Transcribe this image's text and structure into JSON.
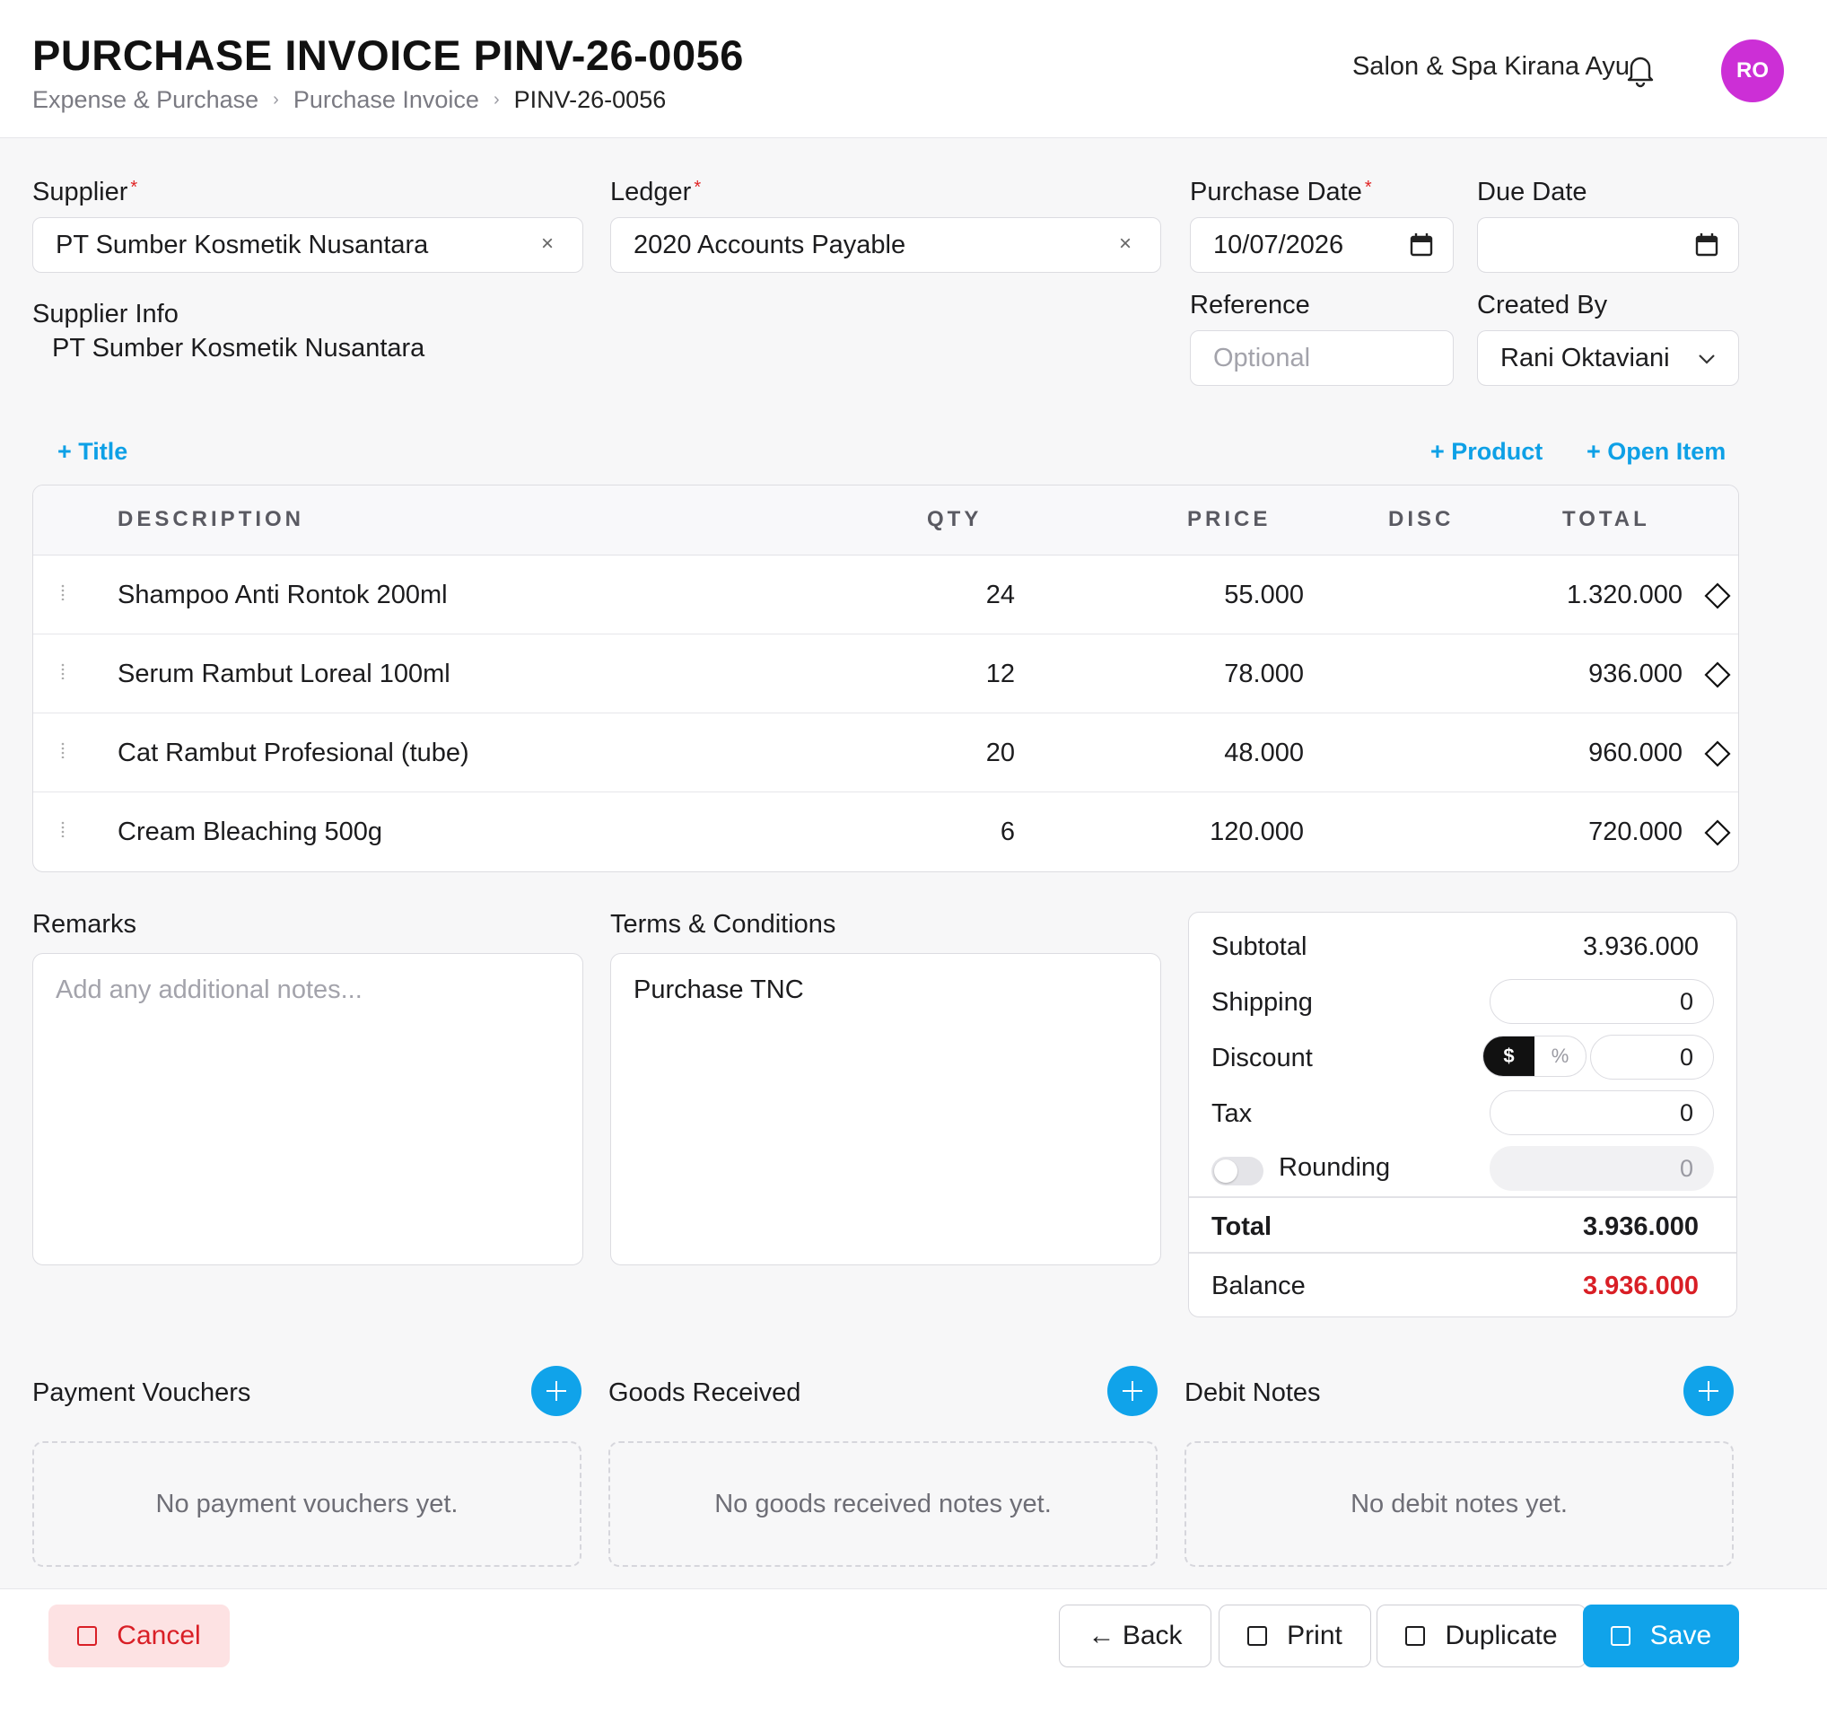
{
  "header": {
    "title": "PURCHASE INVOICE PINV-26-0056",
    "breadcrumb": [
      "Expense & Purchase",
      "Purchase Invoice",
      "PINV-26-0056"
    ],
    "company": "Salon & Spa Kirana Ayu",
    "avatar_initials": "RO",
    "avatar_color": "#cc2fd6",
    "bell_icon": "bell-icon"
  },
  "form": {
    "supplier_label": "Supplier",
    "supplier_value": "PT Sumber Kosmetik Nusantara",
    "ledger_label": "Ledger",
    "ledger_value": "2020 Accounts Payable",
    "purchase_date_label": "Purchase Date",
    "purchase_date_value": "10/07/2026",
    "due_date_label": "Due Date",
    "due_date_value": "",
    "supplier_info_label": "Supplier Info",
    "supplier_info_value": "PT Sumber Kosmetik Nusantara",
    "reference_label": "Reference",
    "reference_placeholder": "Optional",
    "created_by_label": "Created By",
    "created_by_value": "Rani Oktaviani",
    "required_mark": "*"
  },
  "actions": {
    "add_title": "+ Title",
    "add_product": "+ Product",
    "add_open_item": "+ Open Item"
  },
  "table": {
    "columns": [
      "DESCRIPTION",
      "QTY",
      "PRICE",
      "DISC",
      "TOTAL"
    ],
    "rows": [
      {
        "description": "Shampoo Anti Rontok 200ml",
        "qty": "24",
        "price": "55.000",
        "disc": "",
        "total": "1.320.000"
      },
      {
        "description": "Serum Rambut Loreal 100ml",
        "qty": "12",
        "price": "78.000",
        "disc": "",
        "total": "936.000"
      },
      {
        "description": "Cat Rambut Profesional (tube)",
        "qty": "20",
        "price": "48.000",
        "disc": "",
        "total": "960.000"
      },
      {
        "description": "Cream Bleaching 500g",
        "qty": "6",
        "price": "120.000",
        "disc": "",
        "total": "720.000"
      }
    ]
  },
  "remarks": {
    "label": "Remarks",
    "placeholder": "Add any additional notes..."
  },
  "terms": {
    "label": "Terms & Conditions",
    "value": "Purchase TNC"
  },
  "summary": {
    "subtotal_label": "Subtotal",
    "subtotal_value": "3.936.000",
    "shipping_label": "Shipping",
    "shipping_value": "0",
    "discount_label": "Discount",
    "discount_mode_amount": "$",
    "discount_mode_percent": "%",
    "discount_value": "0",
    "tax_label": "Tax",
    "tax_value": "0",
    "rounding_label": "Rounding",
    "rounding_value": "0",
    "rounding_enabled": false,
    "total_label": "Total",
    "total_value": "3.936.000",
    "balance_label": "Balance",
    "balance_value": "3.936.000",
    "balance_color": "#d91f26"
  },
  "sections": {
    "payment_vouchers_title": "Payment Vouchers",
    "payment_vouchers_empty": "No payment vouchers yet.",
    "goods_received_title": "Goods Received",
    "goods_received_empty": "No goods received notes yet.",
    "debit_notes_title": "Debit Notes",
    "debit_notes_empty": "No debit notes yet."
  },
  "footer": {
    "cancel": "Cancel",
    "back": "← Back",
    "print": "Print",
    "duplicate": "Duplicate",
    "save": "Save"
  },
  "colors": {
    "accent": "#10a3ea",
    "link": "#0ea0e6",
    "danger": "#d91f26"
  }
}
